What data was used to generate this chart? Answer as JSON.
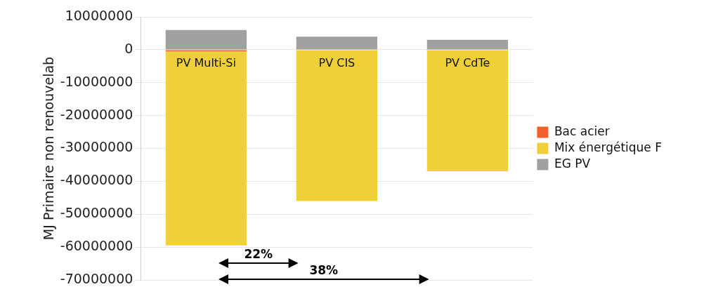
{
  "chart_data": {
    "type": "bar",
    "stacked": true,
    "ylabel": "MJ Primaire non renouvelab",
    "categories": [
      "PV Multi-Si",
      "PV CIS",
      "PV CdTe"
    ],
    "series": [
      {
        "name": "Bac acier",
        "color": "#f0602a",
        "values": [
          -500000,
          0,
          0
        ]
      },
      {
        "name": "Mix énergétique F",
        "color": "#f0d038",
        "values": [
          -59000000,
          -46000000,
          -37000000
        ]
      },
      {
        "name": "EG PV",
        "color": "#a0a0a0",
        "values": [
          6000000,
          4000000,
          3000000
        ]
      }
    ],
    "ylim": [
      -70000000,
      10000000
    ],
    "yticks": [
      -70000000,
      -60000000,
      -50000000,
      -40000000,
      -30000000,
      -20000000,
      -10000000,
      0,
      10000000
    ],
    "grid": "y",
    "legend": "right",
    "annotations": [
      "22%",
      "38%"
    ]
  }
}
